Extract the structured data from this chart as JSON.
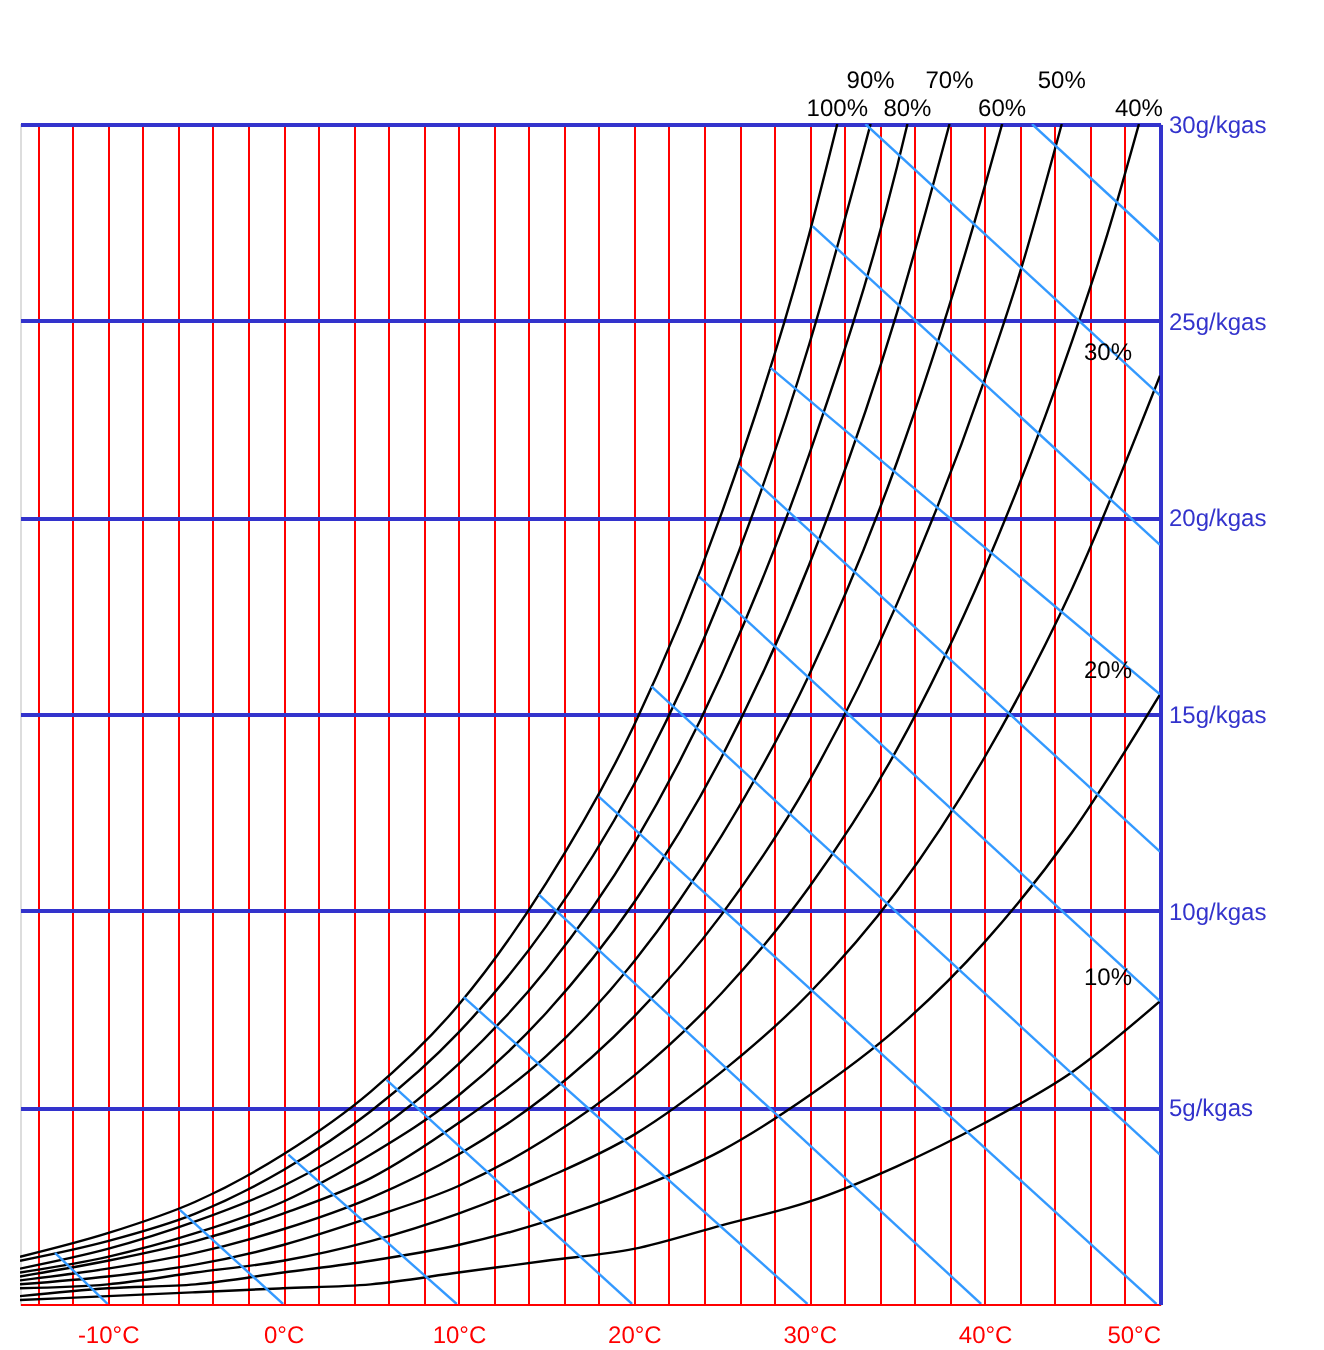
{
  "chart_data": {
    "type": "line",
    "xlim": [
      -15,
      50
    ],
    "ylim": [
      0,
      30
    ],
    "xticks": [
      {
        "value": -14,
        "label": null
      },
      {
        "value": -12,
        "label": null
      },
      {
        "value": -10,
        "label": "-10°C"
      },
      {
        "value": -8,
        "label": null
      },
      {
        "value": -6,
        "label": null
      },
      {
        "value": -4,
        "label": null
      },
      {
        "value": -2,
        "label": null
      },
      {
        "value": 0,
        "label": "0°C"
      },
      {
        "value": 2,
        "label": null
      },
      {
        "value": 4,
        "label": null
      },
      {
        "value": 6,
        "label": null
      },
      {
        "value": 8,
        "label": null
      },
      {
        "value": 10,
        "label": "10°C"
      },
      {
        "value": 12,
        "label": null
      },
      {
        "value": 14,
        "label": null
      },
      {
        "value": 16,
        "label": null
      },
      {
        "value": 18,
        "label": null
      },
      {
        "value": 20,
        "label": "20°C"
      },
      {
        "value": 22,
        "label": null
      },
      {
        "value": 24,
        "label": null
      },
      {
        "value": 26,
        "label": null
      },
      {
        "value": 28,
        "label": null
      },
      {
        "value": 30,
        "label": "30°C"
      },
      {
        "value": 32,
        "label": null
      },
      {
        "value": 34,
        "label": null
      },
      {
        "value": 36,
        "label": null
      },
      {
        "value": 38,
        "label": null
      },
      {
        "value": 40,
        "label": "40°C"
      },
      {
        "value": 42,
        "label": null
      },
      {
        "value": 44,
        "label": null
      },
      {
        "value": 46,
        "label": null
      },
      {
        "value": 48,
        "label": null
      },
      {
        "value": 50,
        "label": "50°C"
      }
    ],
    "yticks": [
      {
        "value": 5,
        "label": "5g/kgas"
      },
      {
        "value": 10,
        "label": "10g/kgas"
      },
      {
        "value": 15,
        "label": "15g/kgas"
      },
      {
        "value": 20,
        "label": "20g/kgas"
      },
      {
        "value": 25,
        "label": "25g/kgas"
      },
      {
        "value": 30,
        "label": "30g/kgas"
      }
    ],
    "grid": true,
    "series": [
      {
        "color": "#000000",
        "x": [
          -15,
          -10,
          -5,
          0,
          5,
          10,
          15,
          20,
          25,
          30,
          31.6
        ],
        "values": [
          1.2,
          1.8,
          2.6,
          3.8,
          5.4,
          7.6,
          10.7,
          14.7,
          20.1,
          27.2,
          30
        ]
      },
      {
        "color": "#000000",
        "x": [
          -15,
          -10,
          -5,
          0,
          5,
          10,
          15,
          20,
          25,
          30,
          33.5
        ],
        "values": [
          1.1,
          1.6,
          2.3,
          3.4,
          4.9,
          6.9,
          9.6,
          13.2,
          18.0,
          24.4,
          30
        ]
      },
      {
        "color": "#000000",
        "x": [
          -15,
          -10,
          -5,
          0,
          5,
          10,
          15,
          20,
          25,
          30,
          35,
          35.6
        ],
        "values": [
          0.9,
          1.4,
          2.1,
          3.0,
          4.3,
          6.1,
          8.5,
          11.7,
          16.0,
          21.6,
          28.9,
          30
        ]
      },
      {
        "color": "#000000",
        "x": [
          -15,
          -10,
          -5,
          0,
          5,
          10,
          15,
          20,
          25,
          30,
          35,
          38
        ],
        "values": [
          0.8,
          1.2,
          1.8,
          2.6,
          3.8,
          5.3,
          7.4,
          10.2,
          13.9,
          18.8,
          25.2,
          30
        ]
      },
      {
        "color": "#000000",
        "x": [
          -15,
          -10,
          -5,
          0,
          5,
          10,
          15,
          20,
          25,
          30,
          35,
          40,
          41
        ],
        "values": [
          0.7,
          1.1,
          1.6,
          2.3,
          3.2,
          4.6,
          6.3,
          8.7,
          11.9,
          16.0,
          21.4,
          28.4,
          30
        ]
      },
      {
        "color": "#000000",
        "x": [
          -15,
          -10,
          -5,
          0,
          5,
          10,
          15,
          20,
          25,
          30,
          35,
          40,
          42,
          44.4
        ],
        "values": [
          0.6,
          0.9,
          1.3,
          1.9,
          2.7,
          3.8,
          5.3,
          7.3,
          9.9,
          13.3,
          17.8,
          23.5,
          26.2,
          30
        ]
      },
      {
        "color": "#000000",
        "x": [
          -15,
          -10,
          -5,
          0,
          5,
          10,
          15,
          20,
          25,
          30,
          35,
          40,
          45,
          47,
          48.8
        ],
        "values": [
          0.5,
          0.7,
          1.0,
          1.5,
          2.2,
          3.0,
          4.2,
          5.8,
          7.9,
          10.6,
          14.1,
          18.7,
          24.5,
          27.2,
          30
        ]
      },
      {
        "color": "#000000",
        "x": [
          -15,
          -10,
          -5,
          0,
          5,
          10,
          15,
          20,
          25,
          30,
          35,
          40,
          45,
          50
        ],
        "values": [
          0.4,
          0.5,
          0.8,
          1.1,
          1.6,
          2.3,
          3.2,
          4.3,
          5.9,
          7.9,
          10.5,
          13.9,
          18.2,
          23.6
        ]
      },
      {
        "color": "#000000",
        "x": [
          -15,
          -10,
          -5,
          0,
          5,
          10,
          15,
          20,
          25,
          30,
          35,
          40,
          45,
          50
        ],
        "values": [
          0.2,
          0.4,
          0.5,
          0.8,
          1.1,
          1.5,
          2.1,
          2.9,
          3.9,
          5.3,
          7.0,
          9.2,
          12.0,
          15.5
        ]
      },
      {
        "color": "#000000",
        "x": [
          -15,
          -10,
          -5,
          0,
          5,
          10,
          15,
          20,
          25,
          30,
          35,
          40,
          45,
          50
        ],
        "values": [
          0.1,
          0.2,
          0.3,
          0.4,
          0.5,
          0.8,
          1.1,
          1.4,
          2.0,
          2.6,
          3.5,
          4.6,
          5.9,
          7.7
        ]
      },
      {
        "color": "#3399ff",
        "x": [
          -13,
          -10
        ],
        "values": [
          1.3,
          0
        ]
      },
      {
        "color": "#3399ff",
        "x": [
          -5.9,
          0
        ],
        "values": [
          2.4,
          0
        ]
      },
      {
        "color": "#3399ff",
        "x": [
          0.3,
          9.9
        ],
        "values": [
          3.8,
          0
        ]
      },
      {
        "color": "#3399ff",
        "x": [
          5.9,
          19.9
        ],
        "values": [
          5.7,
          0
        ]
      },
      {
        "color": "#3399ff",
        "x": [
          10.3,
          29.9
        ],
        "values": [
          7.8,
          0
        ]
      },
      {
        "color": "#3399ff",
        "x": [
          14.6,
          39.8
        ],
        "values": [
          10.4,
          0
        ]
      },
      {
        "color": "#3399ff",
        "x": [
          18,
          49.8
        ],
        "values": [
          12.9,
          0
        ]
      },
      {
        "color": "#3399ff",
        "x": [
          21,
          50
        ],
        "values": [
          15.7,
          3.8
        ]
      },
      {
        "color": "#3399ff",
        "x": [
          23.7,
          50
        ],
        "values": [
          18.5,
          7.7
        ]
      },
      {
        "color": "#3399ff",
        "x": [
          26,
          50
        ],
        "values": [
          21.3,
          11.5
        ]
      },
      {
        "color": "#3399ff",
        "x": [
          27.8,
          50
        ],
        "values": [
          23.8,
          15.5
        ]
      },
      {
        "color": "#3399ff",
        "x": [
          30.2,
          50
        ],
        "values": [
          27.4,
          19.3
        ]
      },
      {
        "color": "#3399ff",
        "x": [
          33.2,
          50
        ],
        "values": [
          30,
          23.1
        ]
      },
      {
        "color": "#3399ff",
        "x": [
          42.7,
          50
        ],
        "values": [
          30,
          27.0
        ]
      }
    ],
    "annotations": [
      {
        "text": "100%",
        "x": 31.6,
        "y": 30
      },
      {
        "text": "90%",
        "x": 33.5,
        "y": 30
      },
      {
        "text": "80%",
        "x": 35.6,
        "y": 30
      },
      {
        "text": "70%",
        "x": 38,
        "y": 30
      },
      {
        "text": "60%",
        "x": 41,
        "y": 30
      },
      {
        "text": "50%",
        "x": 44.4,
        "y": 30
      },
      {
        "text": "40%",
        "x": 48.8,
        "y": 30
      },
      {
        "text": "30%",
        "x": 50,
        "y": 23.6
      },
      {
        "text": "20%",
        "x": 50,
        "y": 15.5
      },
      {
        "text": "10%",
        "x": 50,
        "y": 7.7
      }
    ]
  }
}
